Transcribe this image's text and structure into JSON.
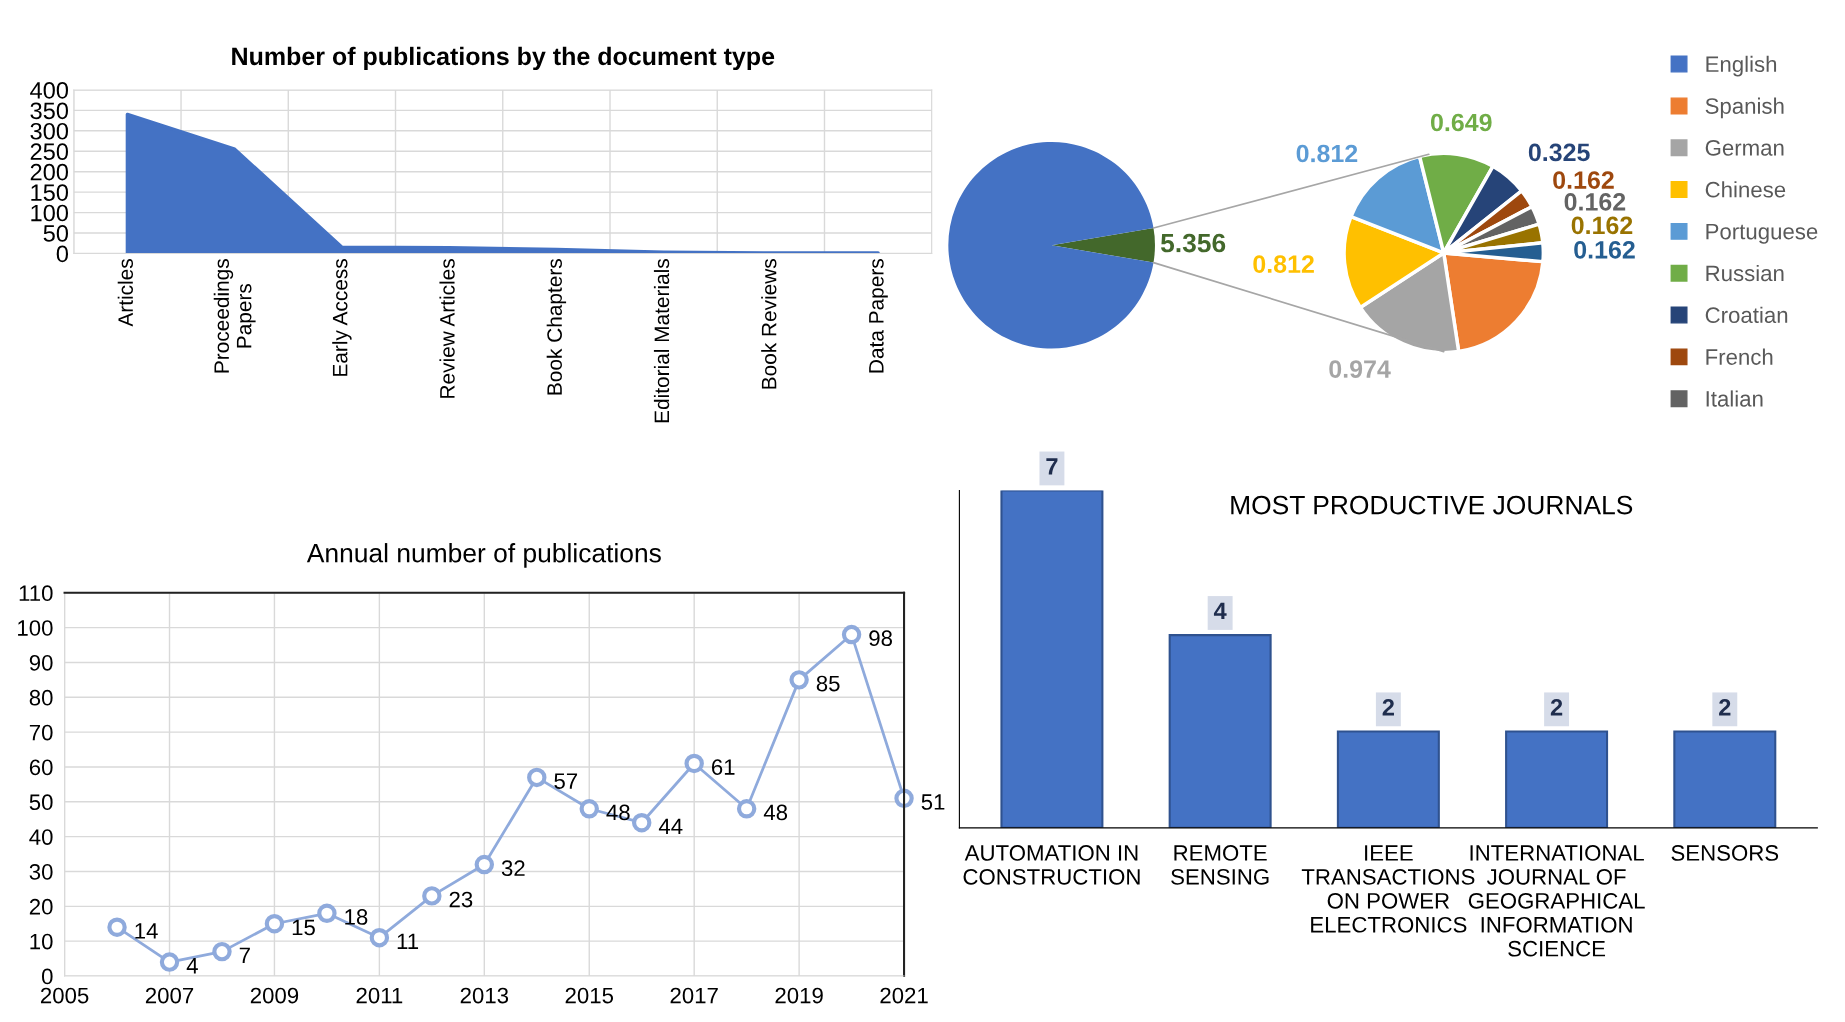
{
  "chart_data": [
    {
      "type": "area",
      "title": "Number of publications by the document type",
      "categories": [
        "Articles",
        "Proceedings\nPapers",
        "Early Access",
        "Review Articles",
        "Book Chapters",
        "Editorial Materials",
        "Book Reviews",
        "Data Papers"
      ],
      "values": [
        340,
        255,
        15,
        14,
        10,
        3,
        1,
        1
      ],
      "color": "#4472c4",
      "ylim": [
        0,
        400
      ],
      "yticks": [
        0,
        50,
        100,
        150,
        200,
        250,
        300,
        350,
        400
      ],
      "grid": true
    },
    {
      "type": "pie",
      "categories": [
        "English",
        null
      ],
      "values": [
        94.644,
        5.356
      ],
      "colors": [
        "#4472c4",
        "#43682b"
      ],
      "value_labels": [
        null,
        "5.356"
      ],
      "legend": "right"
    },
    {
      "type": "pie",
      "categories": [
        "Spanish",
        "German",
        "Chinese",
        "Portuguese",
        "Russian",
        "Croatian",
        "French",
        "Italian",
        null,
        null
      ],
      "values": [
        1.136,
        0.974,
        0.812,
        0.812,
        0.649,
        0.325,
        0.162,
        0.162,
        0.162,
        0.162
      ],
      "colors": [
        "#ed7d31",
        "#a5a5a5",
        "#ffc000",
        "#5b9bd5",
        "#70ad47",
        "#264478",
        "#9e480e",
        "#636363",
        "#997300",
        "#255e91"
      ],
      "value_labels": [
        null,
        "0.974",
        "0.812",
        "0.812",
        "0.649",
        "0.325",
        "0.162",
        "0.162",
        "0.162",
        "0.162"
      ],
      "legend": "right"
    },
    {
      "type": "line",
      "title": "Annual number of publications",
      "x": [
        2006,
        2007,
        2008,
        2009,
        2010,
        2011,
        2012,
        2013,
        2014,
        2015,
        2016,
        2017,
        2018,
        2019,
        2020,
        2021
      ],
      "values": [
        14,
        4,
        7,
        15,
        18,
        11,
        23,
        32,
        57,
        48,
        44,
        61,
        48,
        85,
        98,
        51
      ],
      "color": "#8faadc",
      "xlim": [
        2005,
        2021
      ],
      "xticks": [
        2005,
        2007,
        2009,
        2011,
        2013,
        2015,
        2017,
        2019,
        2021
      ],
      "ylim": [
        0,
        110
      ],
      "yticks": [
        0,
        10,
        20,
        30,
        40,
        50,
        60,
        70,
        80,
        90,
        100,
        110
      ],
      "grid": true,
      "marker": "circle",
      "line_style": "solid",
      "data_labels": true
    },
    {
      "type": "bar",
      "title": "MOST PRODUCTIVE JOURNALS",
      "categories": [
        "AUTOMATION IN\nCONSTRUCTION",
        "REMOTE\nSENSING",
        "IEEE\nTRANSACTIONS\nON POWER\nELECTRONICS",
        "INTERNATIONAL\nJOURNAL OF\nGEOGRAPHICAL\nINFORMATION\nSCIENCE",
        "SENSORS"
      ],
      "values": [
        7,
        4,
        2,
        2,
        2
      ],
      "color": "#4472c4",
      "data_labels": true,
      "relative": false
    }
  ]
}
